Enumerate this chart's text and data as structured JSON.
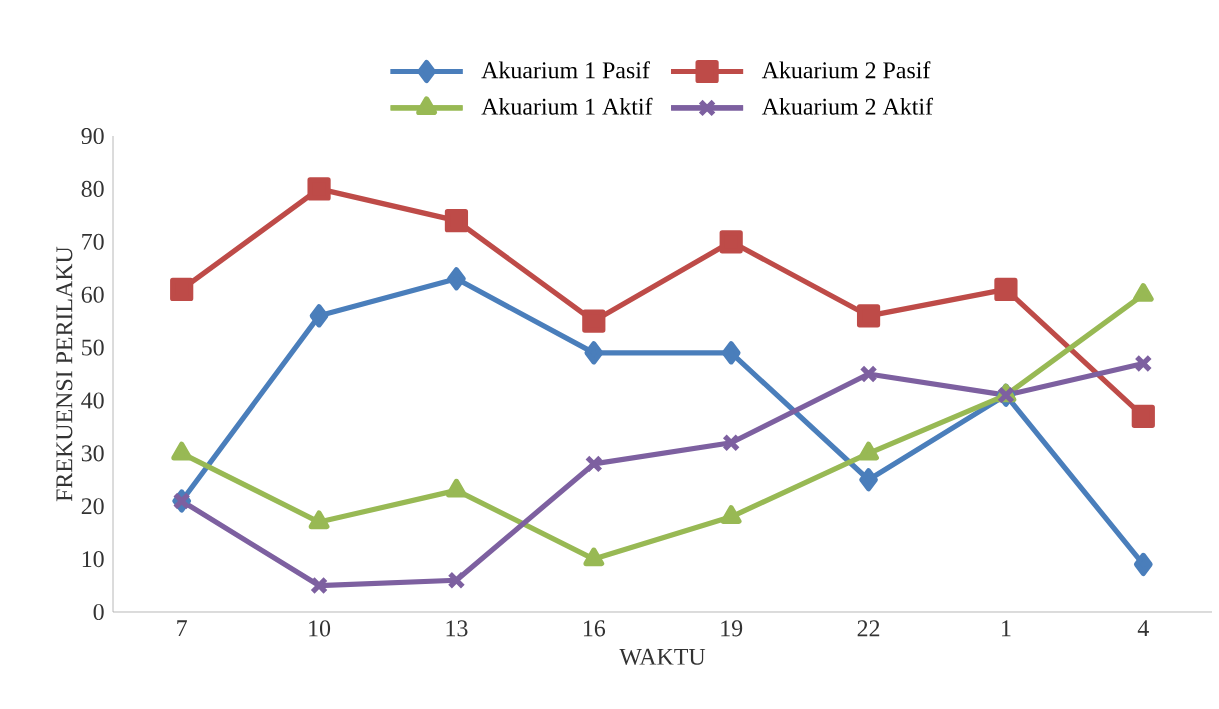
{
  "chart_data": {
    "type": "line",
    "xlabel": "WAKTU",
    "ylabel": "FREKUENSI PERILAKU",
    "categories": [
      "7",
      "10",
      "13",
      "16",
      "19",
      "22",
      "1",
      "4"
    ],
    "series": [
      {
        "name": "Akuarium 1 Pasif",
        "color": "#4a7ebb",
        "marker": "diamond",
        "values": [
          21,
          56,
          63,
          49,
          49,
          25,
          41,
          9
        ]
      },
      {
        "name": "Akuarium 2 Pasif",
        "color": "#be4b48",
        "marker": "square",
        "values": [
          61,
          80,
          74,
          55,
          70,
          56,
          61,
          37
        ]
      },
      {
        "name": "Akuarium 1 Aktif",
        "color": "#98b954",
        "marker": "triangle",
        "values": [
          30,
          17,
          23,
          10,
          18,
          30,
          41,
          60
        ]
      },
      {
        "name": "Akuarium 2 Aktif",
        "color": "#7d60a0",
        "marker": "cross",
        "values": [
          21,
          5,
          6,
          28,
          32,
          45,
          41,
          47
        ]
      }
    ],
    "ylim": [
      0,
      90
    ],
    "yticks": [
      0,
      10,
      20,
      30,
      40,
      50,
      60,
      70,
      80,
      90
    ],
    "grid": false,
    "legend": "top",
    "line_style": "solid"
  }
}
